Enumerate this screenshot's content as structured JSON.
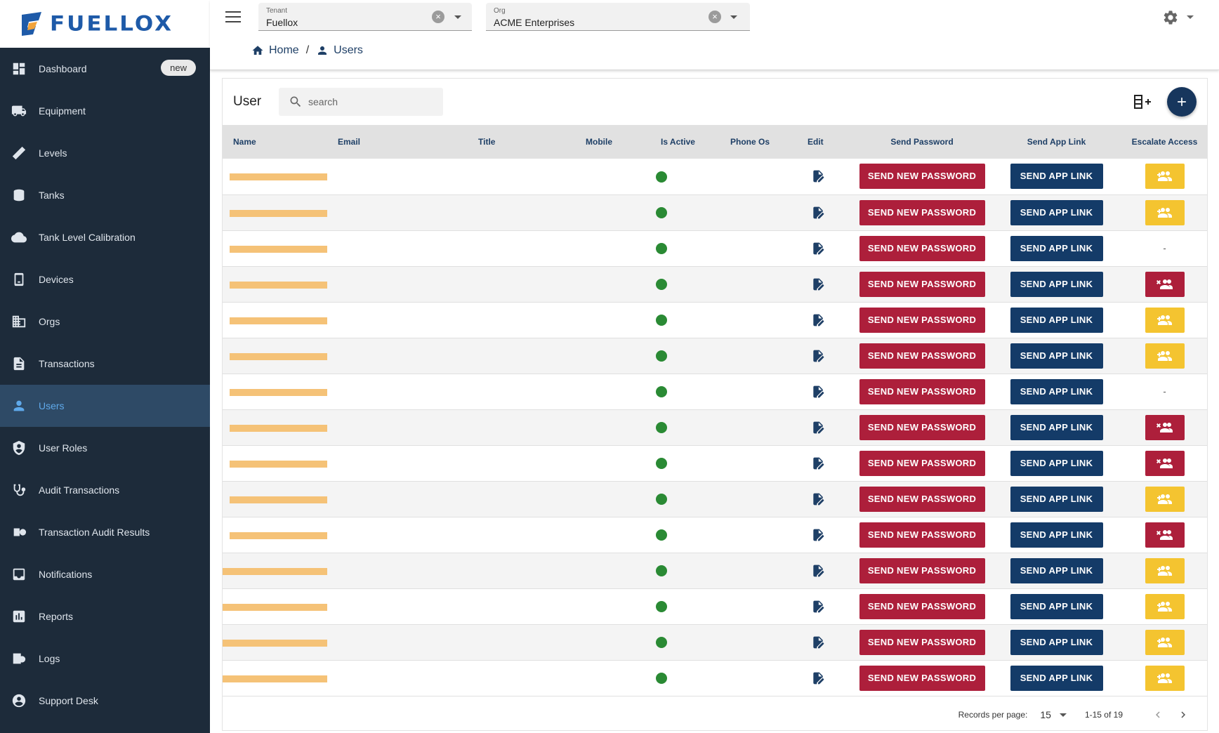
{
  "brand": {
    "name": "FUELLOX",
    "primary_color": "#1e5aa8",
    "accent_color": "#f2a33a"
  },
  "sidebar": {
    "items": [
      {
        "label": "Dashboard",
        "icon": "dashboard-icon",
        "badge": "new"
      },
      {
        "label": "Equipment",
        "icon": "truck-icon"
      },
      {
        "label": "Levels",
        "icon": "ruler-icon"
      },
      {
        "label": "Tanks",
        "icon": "tank-icon"
      },
      {
        "label": "Tank Level Calibration",
        "icon": "cloud-icon"
      },
      {
        "label": "Devices",
        "icon": "device-icon"
      },
      {
        "label": "Orgs",
        "icon": "building-icon"
      },
      {
        "label": "Transactions",
        "icon": "document-icon"
      },
      {
        "label": "Users",
        "icon": "person-icon",
        "active": true
      },
      {
        "label": "User Roles",
        "icon": "shield-icon"
      },
      {
        "label": "Audit Transactions",
        "icon": "stethoscope-icon"
      },
      {
        "label": "Transaction Audit Results",
        "icon": "audit-results-icon"
      },
      {
        "label": "Notifications",
        "icon": "inbox-icon"
      },
      {
        "label": "Reports",
        "icon": "bar-chart-icon"
      },
      {
        "label": "Logs",
        "icon": "logs-icon"
      },
      {
        "label": "Support Desk",
        "icon": "support-icon"
      }
    ]
  },
  "topbar": {
    "tenant": {
      "label": "Tenant",
      "value": "Fuellox"
    },
    "org": {
      "label": "Org",
      "value": "ACME Enterprises"
    }
  },
  "breadcrumb": {
    "home": "Home",
    "current": "Users"
  },
  "users_table": {
    "title": "User",
    "search_placeholder": "search",
    "columns": {
      "name": "Name",
      "email": "Email",
      "title": "Title",
      "mobile": "Mobile",
      "is_active": "Is Active",
      "phone_os": "Phone Os",
      "edit": "Edit",
      "send_password": "Send Password",
      "send_app_link": "Send App Link",
      "escalate_access": "Escalate Access"
    },
    "send_password_label": "SEND NEW PASSWORD",
    "send_app_link_label": "SEND APP LINK",
    "dash": "-",
    "rows": [
      {
        "active": true,
        "escalate": "grant"
      },
      {
        "active": true,
        "escalate": "grant"
      },
      {
        "active": true,
        "escalate": "none"
      },
      {
        "active": true,
        "escalate": "revoke"
      },
      {
        "active": true,
        "escalate": "grant"
      },
      {
        "active": true,
        "escalate": "grant"
      },
      {
        "active": true,
        "escalate": "none"
      },
      {
        "active": true,
        "escalate": "revoke"
      },
      {
        "active": true,
        "escalate": "revoke"
      },
      {
        "active": true,
        "escalate": "grant"
      },
      {
        "active": true,
        "escalate": "revoke"
      },
      {
        "active": true,
        "escalate": "grant"
      },
      {
        "active": true,
        "escalate": "grant"
      },
      {
        "active": true,
        "escalate": "grant"
      },
      {
        "active": true,
        "escalate": "grant"
      }
    ]
  },
  "pagination": {
    "records_label": "Records per page:",
    "per_page": "15",
    "range": "1-15 of 19"
  },
  "colors": {
    "sidebar_bg": "#1d2b3a",
    "sidebar_active": "#2e4a66",
    "navy": "#143b68",
    "danger": "#ad1f3b",
    "warning": "#f4c430",
    "success": "#2a8a34",
    "redaction": "#f5c277"
  }
}
